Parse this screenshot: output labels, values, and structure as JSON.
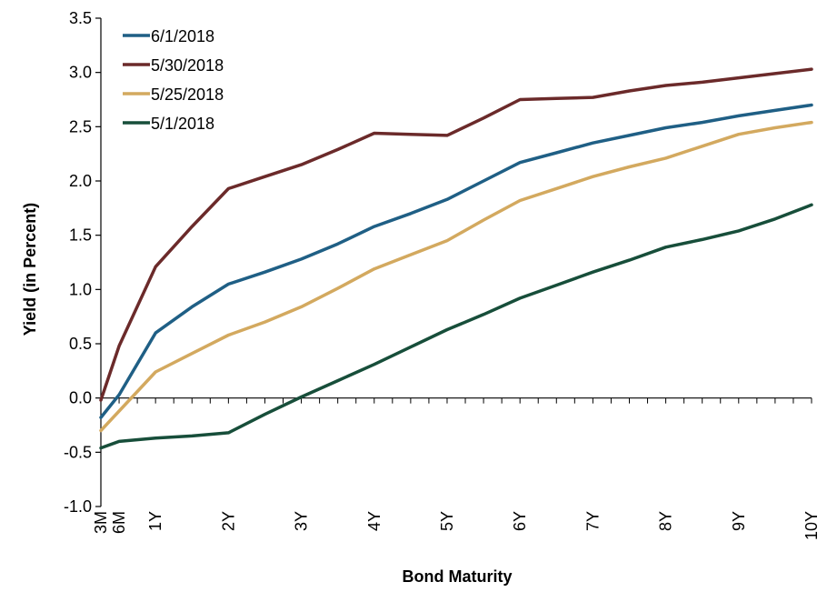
{
  "chart_data": {
    "type": "line",
    "title": "",
    "xlabel": "Bond Maturity",
    "ylabel": "Yield (in Percent)",
    "ylim": [
      -1.0,
      3.5
    ],
    "xlim": [
      0.25,
      10
    ],
    "yticks": [
      -1.0,
      -0.5,
      0.0,
      0.5,
      1.0,
      1.5,
      2.0,
      2.5,
      3.0,
      3.5
    ],
    "ytick_labels": [
      "-1.0",
      "-0.5",
      "0.0",
      "0.5",
      "1.0",
      "1.5",
      "2.0",
      "2.5",
      "3.0",
      "3.5"
    ],
    "xticks": [
      {
        "value": 0.25,
        "label": "3M"
      },
      {
        "value": 0.5,
        "label": "6M"
      },
      {
        "value": 1,
        "label": "1Y"
      },
      {
        "value": 2,
        "label": "2Y"
      },
      {
        "value": 3,
        "label": "3Y"
      },
      {
        "value": 4,
        "label": "4Y"
      },
      {
        "value": 5,
        "label": "5Y"
      },
      {
        "value": 6,
        "label": "6Y"
      },
      {
        "value": 7,
        "label": "7Y"
      },
      {
        "value": 8,
        "label": "8Y"
      },
      {
        "value": 9,
        "label": "9Y"
      },
      {
        "value": 10,
        "label": "10Y"
      }
    ],
    "minor_tick_step": 0.25,
    "grid": false,
    "legend_position": "top-left",
    "x": [
      0.25,
      0.5,
      1,
      1.5,
      2,
      2.5,
      3,
      3.5,
      4,
      4.5,
      5,
      5.5,
      6,
      6.5,
      7,
      7.5,
      8,
      8.5,
      9,
      9.5,
      10
    ],
    "series": [
      {
        "name": "6/1/2018",
        "color": "#1f5f85",
        "values": [
          -0.18,
          0.03,
          0.6,
          0.84,
          1.05,
          1.16,
          1.28,
          1.42,
          1.58,
          1.7,
          1.83,
          2.0,
          2.17,
          2.26,
          2.35,
          2.42,
          2.49,
          2.54,
          2.6,
          2.65,
          2.7
        ]
      },
      {
        "name": "5/30/2018",
        "color": "#6b2a2a",
        "values": [
          -0.02,
          0.48,
          1.21,
          1.58,
          1.93,
          2.04,
          2.15,
          2.29,
          2.44,
          2.43,
          2.42,
          2.58,
          2.75,
          2.76,
          2.77,
          2.83,
          2.88,
          2.91,
          2.95,
          2.99,
          3.03
        ]
      },
      {
        "name": "5/25/2018",
        "color": "#d3a95f",
        "values": [
          -0.3,
          -0.12,
          0.24,
          0.41,
          0.58,
          0.7,
          0.84,
          1.01,
          1.19,
          1.32,
          1.45,
          1.64,
          1.82,
          1.93,
          2.04,
          2.13,
          2.21,
          2.32,
          2.43,
          2.49,
          2.54
        ]
      },
      {
        "name": "5/1/2018",
        "color": "#174e3a",
        "values": [
          -0.46,
          -0.4,
          -0.37,
          -0.35,
          -0.32,
          -0.15,
          0.01,
          0.16,
          0.31,
          0.47,
          0.63,
          0.77,
          0.92,
          1.04,
          1.16,
          1.27,
          1.39,
          1.46,
          1.54,
          1.65,
          1.78
        ]
      }
    ]
  }
}
